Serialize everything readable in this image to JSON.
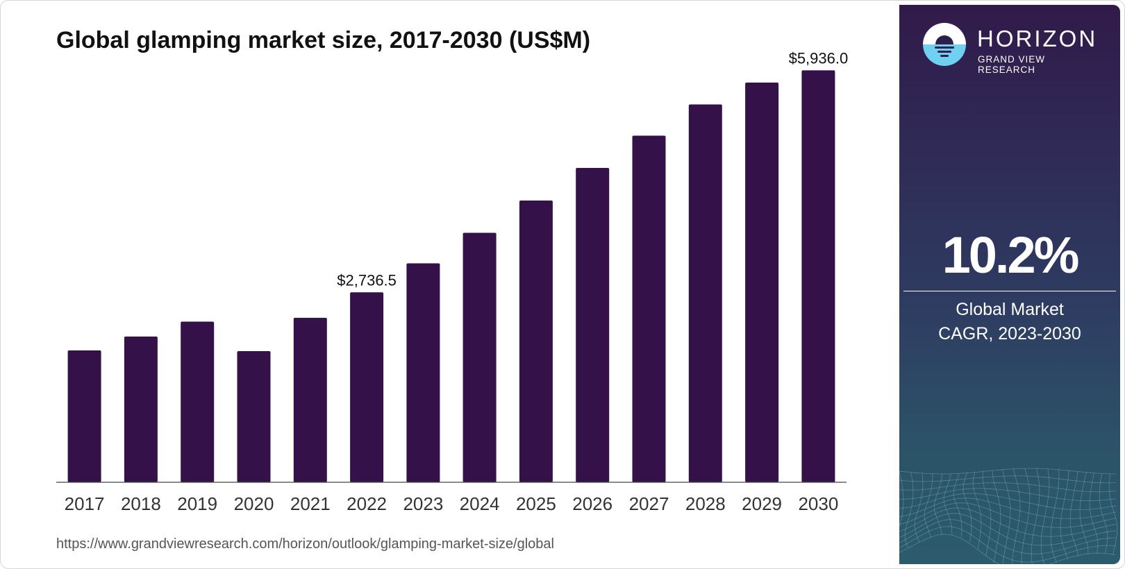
{
  "chart_data": {
    "type": "bar",
    "title": "Global glamping market size, 2017-2030 (US$M)",
    "categories": [
      "2017",
      "2018",
      "2019",
      "2020",
      "2021",
      "2022",
      "2023",
      "2024",
      "2025",
      "2026",
      "2027",
      "2028",
      "2029",
      "2030"
    ],
    "values": [
      1900,
      2100,
      2315,
      1890,
      2370,
      2736.5,
      3155,
      3595,
      4060,
      4530,
      4995,
      5445,
      5760,
      5936.0
    ],
    "value_labels": [
      {
        "index": 5,
        "text": "$2,736.5"
      },
      {
        "index": 13,
        "text": "$5,936.0"
      }
    ],
    "xlabel": "",
    "ylabel": "",
    "ylim": [
      0,
      6000
    ],
    "grid": false,
    "legend": "none",
    "bar_color": "#341149"
  },
  "source_url": "https://www.grandviewresearch.com/horizon/outlook/glamping-market-size/global",
  "side_panel": {
    "brand": "HORIZON",
    "brand_sub": "GRAND VIEW RESEARCH",
    "cagr_value": "10.2%",
    "cagr_label_line1": "Global Market",
    "cagr_label_line2": "CAGR, 2023-2030"
  },
  "colors": {
    "panel_top": "#311a4a",
    "panel_bottom": "#2b5c6d",
    "logo_accent": "#6fd0f2",
    "axis": "#444444"
  }
}
